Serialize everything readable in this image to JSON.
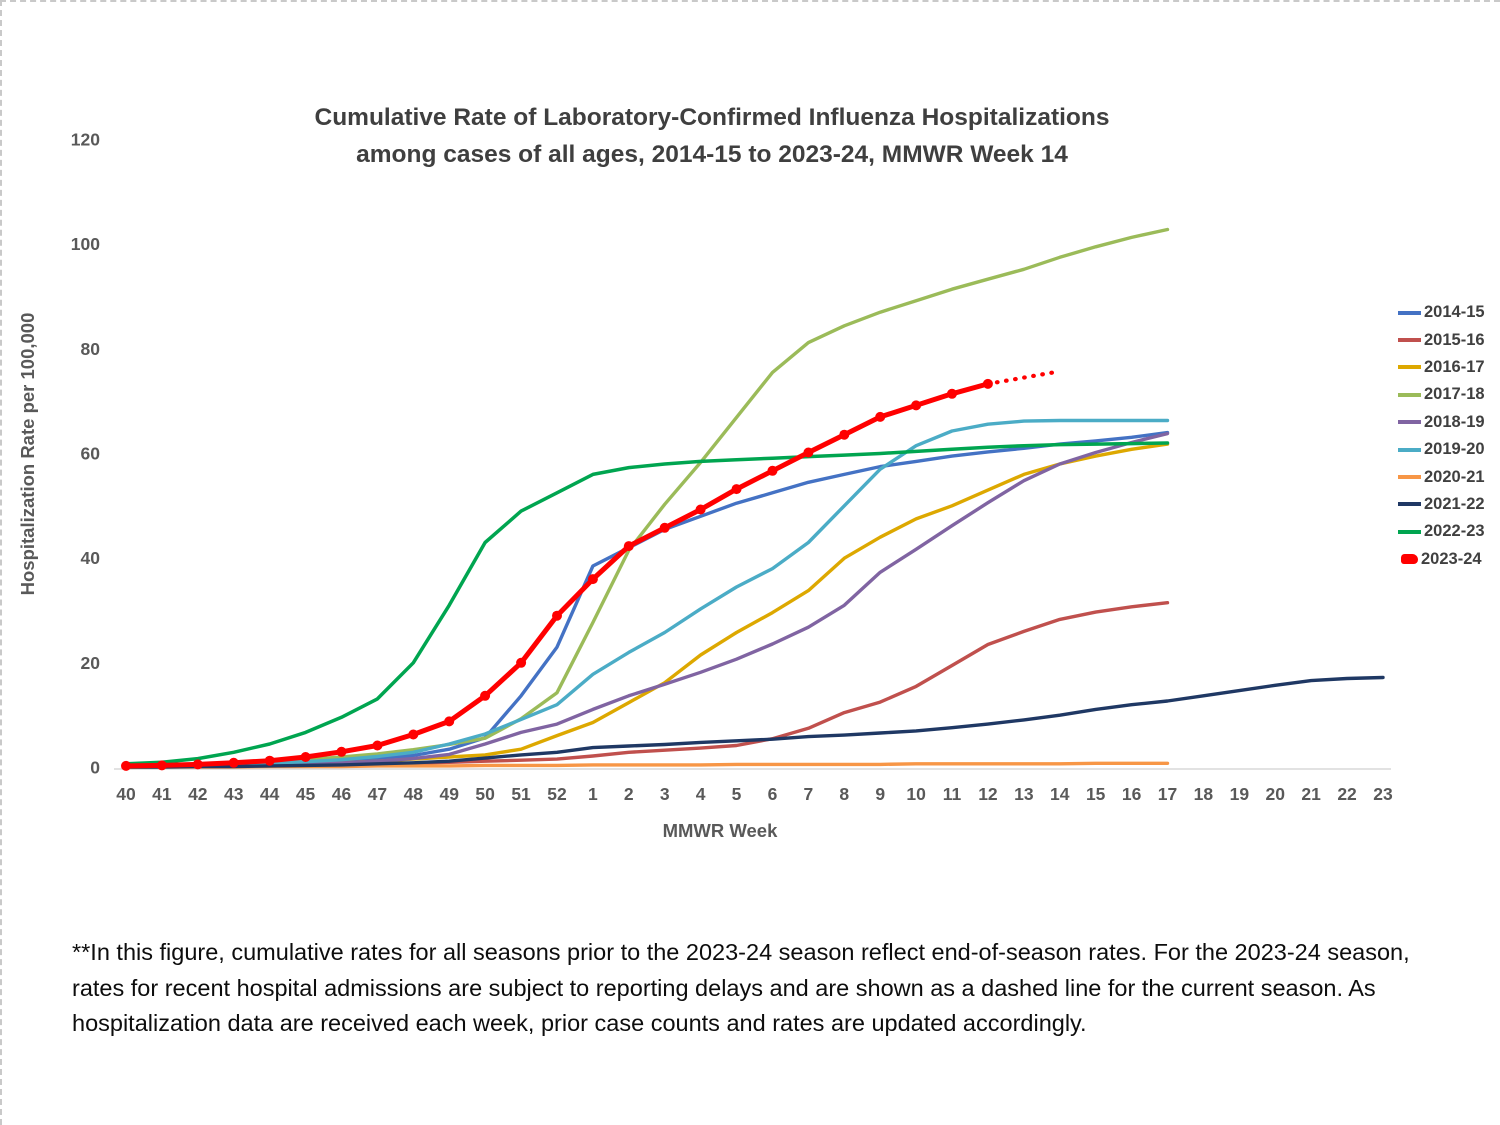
{
  "slide": {
    "title_line1": "Cumulative Rate of Laboratory-Confirmed Influenza Hospitalizations",
    "title_line2": "among cases of all ages, 2014-15 to 2023-24, MMWR Week 14",
    "footnote": "**In this figure, cumulative rates for all seasons prior to the 2023-24 season reflect end-of-season rates. For the 2023-24 season, rates for recent hospital admissions are subject to reporting delays and are shown as a dashed line for the current season. As hospitalization data are received each week, prior case counts and rates are updated accordingly."
  },
  "chart_data": {
    "type": "line",
    "title": "Cumulative Rate of Laboratory-Confirmed Influenza Hospitalizations among cases of all ages, 2014-15 to 2023-24, MMWR Week 14",
    "xlabel": "MMWR Week",
    "ylabel": "Hospitalization Rate per 100,000",
    "ylim": [
      0,
      120
    ],
    "y_ticks": [
      0,
      20,
      40,
      60,
      80,
      100,
      120
    ],
    "grid": false,
    "legend_position": "right",
    "axis_color": "#595959",
    "baseline_color": "#d9d9d9",
    "x_categories": [
      "40",
      "41",
      "42",
      "43",
      "44",
      "45",
      "46",
      "47",
      "48",
      "49",
      "50",
      "51",
      "52",
      "1",
      "2",
      "3",
      "4",
      "5",
      "6",
      "7",
      "8",
      "9",
      "10",
      "11",
      "12",
      "13",
      "14",
      "15",
      "16",
      "17",
      "18",
      "19",
      "20",
      "21",
      "22",
      "23"
    ],
    "series": [
      {
        "name": "2014-15",
        "color": "#4472C4",
        "line_width": 3.4,
        "values": [
          0.2,
          0.3,
          0.4,
          0.5,
          0.7,
          0.9,
          1.2,
          1.6,
          2.3,
          3.5,
          5.7,
          13.7,
          23,
          38.5,
          42,
          45.5,
          48,
          50.5,
          52.5,
          54.5,
          56,
          57.5,
          58.5,
          59.5,
          60.3,
          61,
          61.8,
          62.4,
          63.1,
          64,
          null,
          null,
          null,
          null,
          null,
          null
        ]
      },
      {
        "name": "2015-16",
        "color": "#C0504D",
        "line_width": 3.4,
        "values": [
          0.1,
          0.2,
          0.2,
          0.3,
          0.4,
          0.5,
          0.6,
          0.7,
          0.8,
          1,
          1.2,
          1.4,
          1.6,
          2.2,
          2.9,
          3.3,
          3.7,
          4.2,
          5.5,
          7.5,
          10.5,
          12.5,
          15.5,
          19.5,
          23.5,
          26,
          28.3,
          29.7,
          30.7,
          31.5,
          null,
          null,
          null,
          null,
          null,
          null
        ]
      },
      {
        "name": "2016-17",
        "color": "#DDA800",
        "line_width": 3.4,
        "values": [
          0.1,
          0.2,
          0.3,
          0.4,
          0.5,
          0.7,
          0.9,
          1.2,
          1.6,
          2,
          2.4,
          3.5,
          6.1,
          8.6,
          12.4,
          16.2,
          21.5,
          25.8,
          29.6,
          33.8,
          40,
          44,
          47.5,
          50,
          53,
          56,
          58,
          59.5,
          60.8,
          61.8,
          null,
          null,
          null,
          null,
          null,
          null
        ]
      },
      {
        "name": "2017-18",
        "color": "#9BBB59",
        "line_width": 3.4,
        "values": [
          0.3,
          0.4,
          0.6,
          0.8,
          1.1,
          1.5,
          2,
          2.6,
          3.4,
          4.4,
          5.6,
          9.3,
          14.3,
          27.7,
          41.5,
          50.3,
          58.3,
          66.9,
          75.5,
          81.2,
          84.4,
          87,
          89.2,
          91.4,
          93.3,
          95.2,
          97.5,
          99.5,
          101.3,
          102.8,
          null,
          null,
          null,
          null,
          null,
          null
        ]
      },
      {
        "name": "2018-19",
        "color": "#8064A2",
        "line_width": 3.4,
        "values": [
          0.1,
          0.2,
          0.3,
          0.4,
          0.5,
          0.7,
          0.9,
          1.2,
          1.7,
          2.5,
          4.5,
          6.7,
          8.3,
          11.1,
          13.7,
          15.9,
          18.2,
          20.7,
          23.6,
          26.8,
          31,
          37.3,
          41.7,
          46.2,
          50.6,
          54.8,
          58,
          60.2,
          62.1,
          63.8,
          null,
          null,
          null,
          null,
          null,
          null
        ]
      },
      {
        "name": "2019-20",
        "color": "#4BACC6",
        "line_width": 3.4,
        "values": [
          0.2,
          0.3,
          0.4,
          0.6,
          0.8,
          1.1,
          1.5,
          2.1,
          2.9,
          4.5,
          6.4,
          9.2,
          12,
          17.8,
          22,
          25.8,
          30.3,
          34.5,
          38,
          43,
          50,
          57,
          61.5,
          64.3,
          65.6,
          66.2,
          66.3,
          66.3,
          66.3,
          66.3,
          null,
          null,
          null,
          null,
          null,
          null
        ]
      },
      {
        "name": "2020-21",
        "color": "#F79646",
        "line_width": 3.4,
        "values": [
          0,
          0.1,
          0.1,
          0.1,
          0.2,
          0.2,
          0.2,
          0.3,
          0.3,
          0.3,
          0.4,
          0.4,
          0.4,
          0.5,
          0.5,
          0.5,
          0.5,
          0.6,
          0.6,
          0.6,
          0.6,
          0.6,
          0.7,
          0.7,
          0.7,
          0.7,
          0.7,
          0.8,
          0.8,
          0.8,
          null,
          null,
          null,
          null,
          null,
          null
        ]
      },
      {
        "name": "2021-22",
        "color": "#1F3864",
        "line_width": 3.4,
        "values": [
          0.1,
          0.1,
          0.2,
          0.2,
          0.3,
          0.4,
          0.5,
          0.7,
          0.9,
          1.2,
          1.8,
          2.4,
          2.9,
          3.8,
          4.1,
          4.4,
          4.8,
          5.1,
          5.4,
          5.9,
          6.2,
          6.6,
          7,
          7.6,
          8.3,
          9.1,
          10,
          11.1,
          12,
          12.7,
          13.7,
          14.7,
          15.7,
          16.6,
          17,
          17.2
        ]
      },
      {
        "name": "2022-23",
        "color": "#00A550",
        "line_width": 3.5,
        "values": [
          0.7,
          1,
          1.7,
          2.9,
          4.5,
          6.7,
          9.6,
          13.1,
          20,
          31,
          43,
          49,
          52.5,
          56,
          57.3,
          58,
          58.5,
          58.8,
          59.1,
          59.4,
          59.7,
          60,
          60.4,
          60.8,
          61.2,
          61.5,
          61.7,
          61.8,
          61.9,
          62,
          null,
          null,
          null,
          null,
          null,
          null
        ]
      },
      {
        "name": "2023-24",
        "color": "#FF0000",
        "line_width": 5,
        "marker": true,
        "marker_radius": 5,
        "values": [
          0.3,
          0.4,
          0.6,
          0.9,
          1.3,
          2,
          3,
          4.2,
          6.3,
          8.8,
          13.7,
          20,
          29,
          36,
          42.3,
          45.8,
          49.3,
          53.2,
          56.7,
          60.2,
          63.6,
          67,
          69.2,
          71.4,
          73.3,
          null,
          null,
          null,
          null,
          null,
          null,
          null,
          null,
          null,
          null,
          null
        ],
        "dashed_values": [
          null,
          null,
          null,
          null,
          null,
          null,
          null,
          null,
          null,
          null,
          null,
          null,
          null,
          null,
          null,
          null,
          null,
          null,
          null,
          null,
          null,
          null,
          null,
          null,
          73.3,
          74.5,
          75.7,
          null,
          null,
          null,
          null,
          null,
          null,
          null,
          null,
          null
        ],
        "dashed_note": "reporting-delay dashed segment, weeks 12-14"
      }
    ]
  }
}
